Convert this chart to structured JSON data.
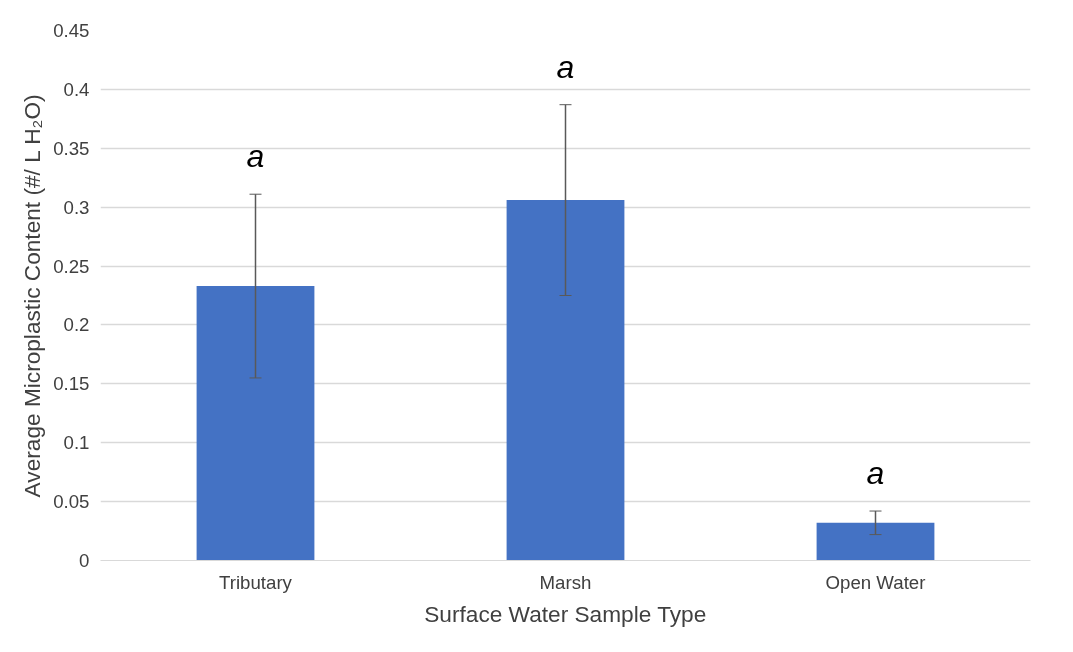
{
  "chart_data": {
    "type": "bar",
    "xlabel": "Surface Water Sample Type",
    "ylabel": "Average Microplastic Content (#/ L H₂O)",
    "categories": [
      "Tributary",
      "Marsh",
      "Open Water"
    ],
    "values": [
      0.233,
      0.306,
      0.032
    ],
    "errors": [
      0.078,
      0.081,
      0.01
    ],
    "color": "#4472c4",
    "ylim": [
      0,
      0.45
    ],
    "yticks": [
      0,
      {
        "value": 0.05,
        "label": "0.05"
      },
      {
        "value": 0.1,
        "label": "0.1"
      },
      {
        "value": 0.15,
        "label": "0.15"
      },
      {
        "value": 0.2,
        "label": "0.2"
      },
      {
        "value": 0.25,
        "label": "0.25"
      },
      {
        "value": 0.3,
        "label": "0.3"
      },
      {
        "value": 0.35,
        "label": "0.35"
      },
      {
        "value": 0.4,
        "label": "0.4"
      },
      {
        "value": 0.45,
        "label": "0.45"
      }
    ],
    "grid": "y",
    "annotations": [
      "a",
      "a",
      "a"
    ]
  }
}
